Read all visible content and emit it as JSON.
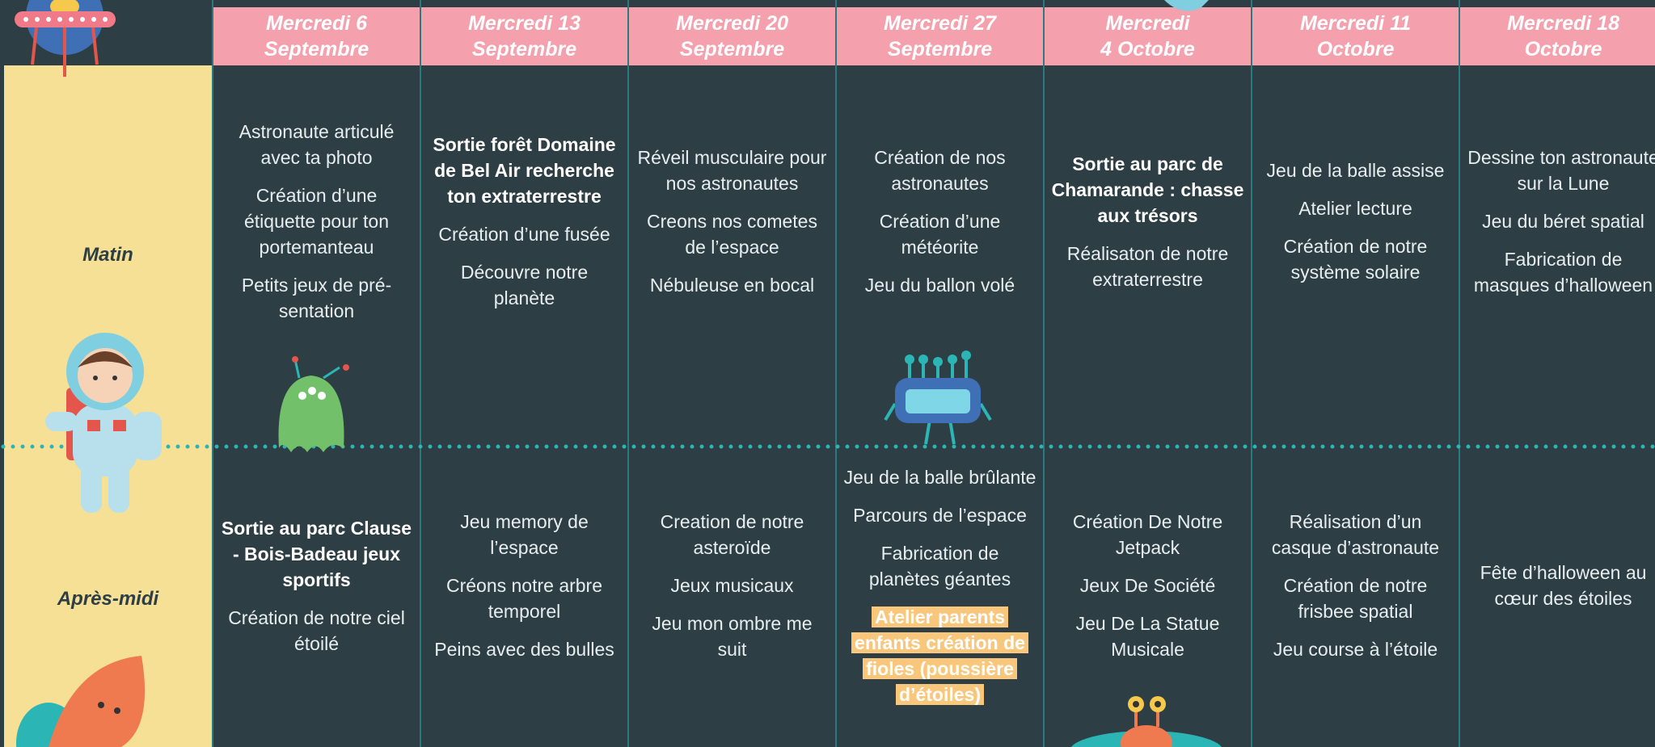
{
  "rows": [
    "Matin",
    "Après-midi"
  ],
  "days": [
    {
      "header": [
        "Mercredi 6",
        "Septembre"
      ],
      "morning": [
        {
          "text": "Astronaute articulé avec ta photo"
        },
        {
          "text": "Création d’une étiquette pour ton portemanteau"
        },
        {
          "text": "Petits jeux de pré-sentation"
        }
      ],
      "afternoon": [
        {
          "text": "Sortie au parc Clause - Bois-Badeau jeux sportifs",
          "style": "bold"
        },
        {
          "text": "Création de notre ciel étoilé"
        }
      ]
    },
    {
      "header": [
        "Mercredi 13",
        "Septembre"
      ],
      "morning": [
        {
          "text": "Sortie forêt Domaine de Bel Air recherche ton extraterrestre",
          "style": "bold"
        },
        {
          "text": "Création d’une fusée"
        },
        {
          "text": "Découvre notre planète"
        }
      ],
      "afternoon": [
        {
          "text": "Jeu memory de l’espace"
        },
        {
          "text": "Créons notre arbre temporel"
        },
        {
          "text": "Peins avec des bulles"
        }
      ]
    },
    {
      "header": [
        "Mercredi 20",
        "Septembre"
      ],
      "morning": [
        {
          "text": "Réveil musculaire pour nos astronautes"
        },
        {
          "text": "Creons nos cometes de l’espace"
        },
        {
          "text": "Nébuleuse en bocal"
        }
      ],
      "afternoon": [
        {
          "text": "Creation de notre asteroïde"
        },
        {
          "text": "Jeux musicaux"
        },
        {
          "text": "Jeu mon ombre me suit"
        }
      ]
    },
    {
      "header": [
        "Mercredi 27",
        "Septembre"
      ],
      "morning": [
        {
          "text": "Création de nos astronautes"
        },
        {
          "text": "Création d’une météorite"
        },
        {
          "text": "Jeu du ballon volé"
        }
      ],
      "afternoon": [
        {
          "text": "Jeu de la balle brûlante"
        },
        {
          "text": "Parcours de l’espace"
        },
        {
          "text": "Fabrication de planètes géantes"
        },
        {
          "text": "Atelier parents enfants  création de fioles (poussière d’étoiles)",
          "style": "highlight"
        }
      ]
    },
    {
      "header": [
        "Mercredi",
        "4 Octobre"
      ],
      "morning": [
        {
          "text": "Sortie au parc de Chamarande : chasse aux trésors",
          "style": "bold"
        },
        {
          "text": "Réalisaton de notre extraterrestre"
        }
      ],
      "afternoon": [
        {
          "text": "Création De Notre Jetpack"
        },
        {
          "text": "Jeux De Société"
        },
        {
          "text": "Jeu De La Statue Musicale"
        }
      ]
    },
    {
      "header": [
        "Mercredi 11",
        "Octobre"
      ],
      "morning": [
        {
          "text": "Jeu de la balle assise"
        },
        {
          "text": "Atelier lecture"
        },
        {
          "text": "Création de notre système solaire"
        }
      ],
      "afternoon": [
        {
          "text": "Réalisation d’un casque d’astronaute"
        },
        {
          "text": "Création de notre frisbee spatial"
        },
        {
          "text": "Jeu course à l’étoile"
        }
      ]
    },
    {
      "header": [
        "Mercredi 18",
        "Octobre"
      ],
      "morning": [
        {
          "text": "Dessine ton astronaute sur la Lune"
        },
        {
          "text": "Jeu du béret spatial"
        },
        {
          "text": "Fabrication de masques d’halloween"
        }
      ],
      "afternoon": [
        {
          "text": "Fête d’halloween au cœur des étoiles"
        }
      ]
    }
  ]
}
